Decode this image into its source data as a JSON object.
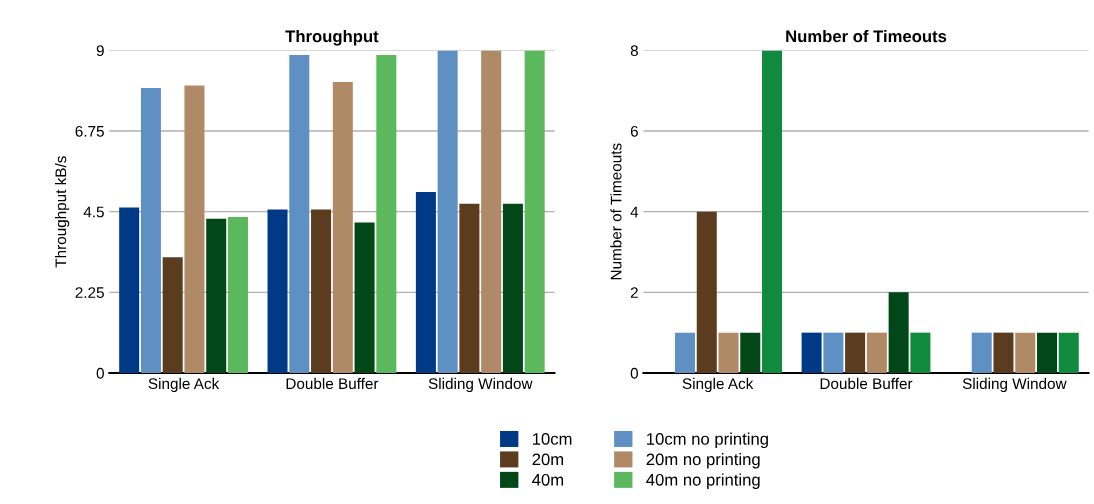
{
  "chart_data": [
    {
      "type": "bar",
      "title": "Throughput",
      "ylabel": "Throughput kB/s",
      "categories": [
        "Single Ack",
        "Double Buffer",
        "Sliding Window"
      ],
      "ylim": [
        0,
        9
      ],
      "yticks": [
        0,
        2.25,
        4.5,
        6.75,
        9
      ],
      "grid": "y",
      "legend": "bottom",
      "series": [
        {
          "name": "10cm",
          "color": "#003a87",
          "values": [
            4.62,
            4.56,
            5.05
          ]
        },
        {
          "name": "10cm no printing",
          "color": "#5f90c4",
          "values": [
            7.95,
            8.87,
            9
          ]
        },
        {
          "name": "20m",
          "color": "#5b3c1e",
          "values": [
            3.23,
            4.56,
            4.72
          ]
        },
        {
          "name": "20m no printing",
          "color": "#b08a66",
          "values": [
            8.02,
            8.12,
            9
          ]
        },
        {
          "name": "40m",
          "color": "#024717",
          "values": [
            4.3,
            4.2,
            4.72
          ]
        },
        {
          "name": "40m no printing",
          "color": "#5cb85c",
          "values": [
            4.35,
            8.87,
            9
          ]
        }
      ]
    },
    {
      "type": "bar",
      "title": "Number of Timeouts",
      "ylabel": "Number of Timeouts",
      "categories": [
        "Single Ack",
        "Double Buffer",
        "Sliding Window"
      ],
      "ylim": [
        0,
        8
      ],
      "yticks": [
        0,
        2,
        4,
        6,
        8
      ],
      "grid": "y",
      "series": [
        {
          "color": "#003a87",
          "values": [
            0,
            1,
            0
          ]
        },
        {
          "color": "#5f90c4",
          "values": [
            1,
            1,
            1
          ]
        },
        {
          "color": "#5b3c1e",
          "values": [
            4,
            1,
            1
          ]
        },
        {
          "color": "#b08a66",
          "values": [
            1,
            1,
            1
          ]
        },
        {
          "color": "#024717",
          "values": [
            1,
            2,
            1
          ]
        },
        {
          "color": "#108a3c",
          "values": [
            8,
            1,
            1
          ]
        }
      ]
    }
  ]
}
